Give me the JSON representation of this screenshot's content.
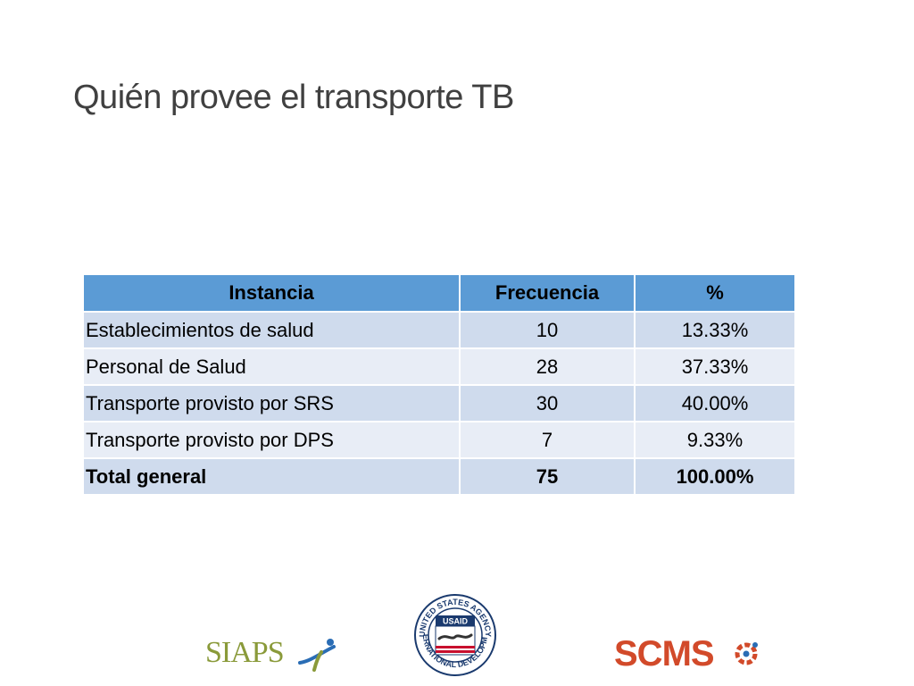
{
  "title": "Quién provee el transporte TB",
  "table": {
    "headers": [
      "Instancia",
      "Frecuencia",
      "%"
    ],
    "rows": [
      [
        "Establecimientos de salud",
        "10",
        "13.33%"
      ],
      [
        "Personal de Salud",
        "28",
        "37.33%"
      ],
      [
        "Transporte provisto por SRS",
        "30",
        "40.00%"
      ],
      [
        "Transporte provisto por DPS",
        "7",
        "9.33%"
      ]
    ],
    "total": [
      "Total general",
      "75",
      "100.00%"
    ]
  },
  "logos": {
    "siaps": "SIAPS",
    "usaid": "USAID",
    "usaid_ring_top": "UNITED STATES AGENCY",
    "usaid_ring_bottom": "INTERNATIONAL DEVELOPMENT",
    "scms": "SCMS"
  },
  "colors": {
    "header": "#5b9bd5",
    "row_dark": "#cfdbed",
    "row_light": "#e8edf6",
    "siaps": "#8a9a3a",
    "scms": "#d24a2a",
    "usaid": "#1a3a6e"
  }
}
